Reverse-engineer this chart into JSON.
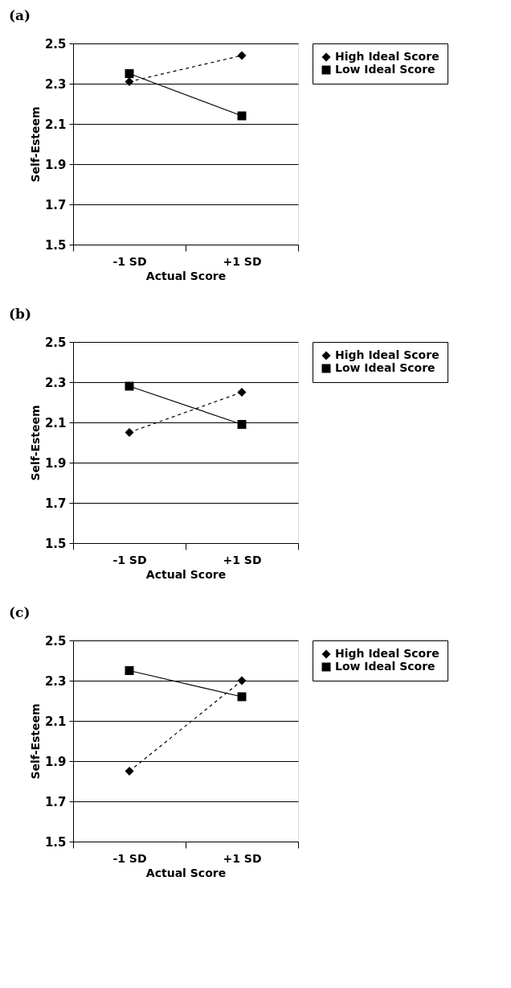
{
  "chart_data": [
    {
      "type": "line",
      "title": "(a)",
      "xlabel": "Actual Score",
      "ylabel": "Self-Esteem",
      "categories": [
        "-1 SD",
        "+1 SD"
      ],
      "ylim": [
        1.5,
        2.5
      ],
      "yticks": [
        1.5,
        1.7,
        1.9,
        2.1,
        2.3,
        2.5
      ],
      "grid": "y",
      "legend": "right",
      "series": [
        {
          "name": "High Ideal Score",
          "color": "#000000",
          "marker": "diamond",
          "line_style": "dashed",
          "values": [
            2.31,
            2.44
          ]
        },
        {
          "name": "Low Ideal Score",
          "color": "#000000",
          "marker": "square",
          "line_style": "solid",
          "values": [
            2.35,
            2.14
          ]
        }
      ]
    },
    {
      "type": "line",
      "title": "(b)",
      "xlabel": "Actual Score",
      "ylabel": "Self-Esteem",
      "categories": [
        "-1 SD",
        "+1 SD"
      ],
      "ylim": [
        1.5,
        2.5
      ],
      "yticks": [
        1.5,
        1.7,
        1.9,
        2.1,
        2.3,
        2.5
      ],
      "grid": "y",
      "legend": "right",
      "series": [
        {
          "name": "High Ideal Score",
          "color": "#000000",
          "marker": "diamond",
          "line_style": "dashed",
          "values": [
            2.05,
            2.25
          ]
        },
        {
          "name": "Low Ideal Score",
          "color": "#000000",
          "marker": "square",
          "line_style": "solid",
          "values": [
            2.28,
            2.09
          ]
        }
      ]
    },
    {
      "type": "line",
      "title": "(c)",
      "xlabel": "Actual Score",
      "ylabel": "Self-Esteem",
      "categories": [
        "-1 SD",
        "+1 SD"
      ],
      "ylim": [
        1.5,
        2.5
      ],
      "yticks": [
        1.5,
        1.7,
        1.9,
        2.1,
        2.3,
        2.5
      ],
      "grid": "y",
      "legend": "right",
      "series": [
        {
          "name": "High Ideal Score",
          "color": "#000000",
          "marker": "diamond",
          "line_style": "dashed",
          "values": [
            1.85,
            2.3
          ]
        },
        {
          "name": "Low Ideal Score",
          "color": "#000000",
          "marker": "square",
          "line_style": "solid",
          "values": [
            2.35,
            2.22
          ]
        }
      ]
    }
  ]
}
